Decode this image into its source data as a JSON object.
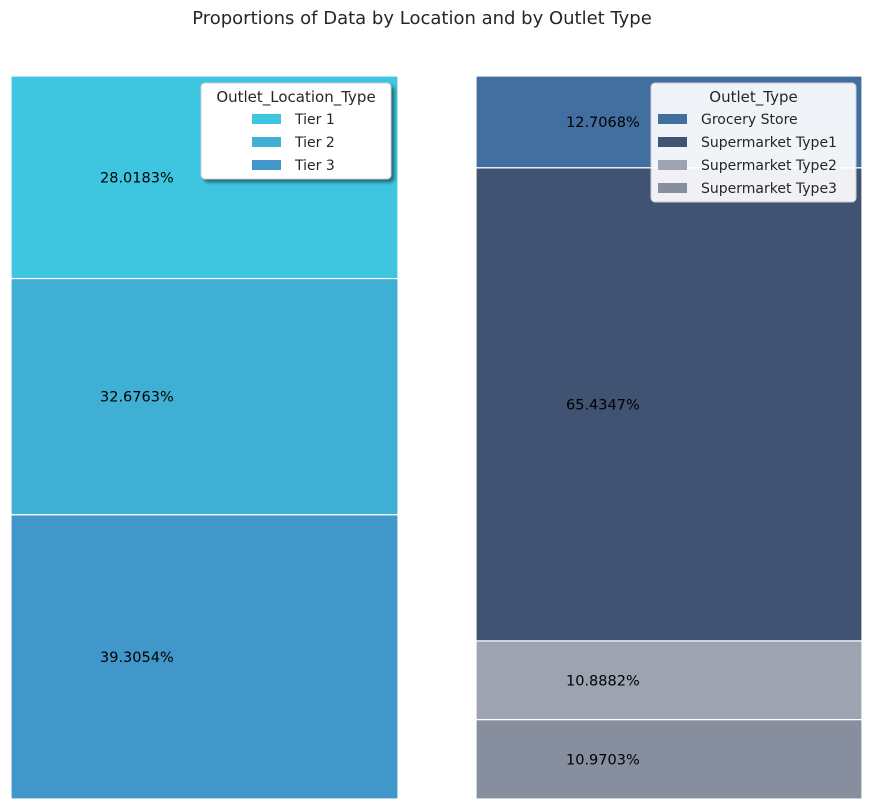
{
  "title": "Proportions of Data by Location and by Outlet Type",
  "chart_data": [
    {
      "type": "bar",
      "subtype": "stacked-100-percent",
      "legend": {
        "title": "Outlet_Location_Type",
        "placement": "top-right",
        "shadow": true
      },
      "series": [
        {
          "name": "Tier 1",
          "value": 28.0183,
          "label": "28.0183%",
          "color": "#3ec6e0"
        },
        {
          "name": "Tier 2",
          "value": 32.6763,
          "label": "32.6763%",
          "color": "#40afd4"
        },
        {
          "name": "Tier 3",
          "value": 39.3054,
          "label": "39.3054%",
          "color": "#4197c9"
        }
      ],
      "ylim": [
        0,
        100
      ],
      "grid": false
    },
    {
      "type": "bar",
      "subtype": "stacked-100-percent",
      "legend": {
        "title": "Outlet_Type",
        "placement": "top-right",
        "shadow": false
      },
      "series": [
        {
          "name": "Grocery Store",
          "value": 12.7068,
          "label": "12.7068%",
          "color": "#426ea0"
        },
        {
          "name": "Supermarket Type1",
          "value": 65.4347,
          "label": "65.4347%",
          "color": "#405373"
        },
        {
          "name": "Supermarket Type2",
          "value": 10.8882,
          "label": "10.8882%",
          "color": "#9da3b0"
        },
        {
          "name": "Supermarket Type3",
          "value": 10.9703,
          "label": "10.9703%",
          "color": "#878e9e"
        }
      ],
      "ylim": [
        0,
        100
      ],
      "grid": false
    }
  ]
}
